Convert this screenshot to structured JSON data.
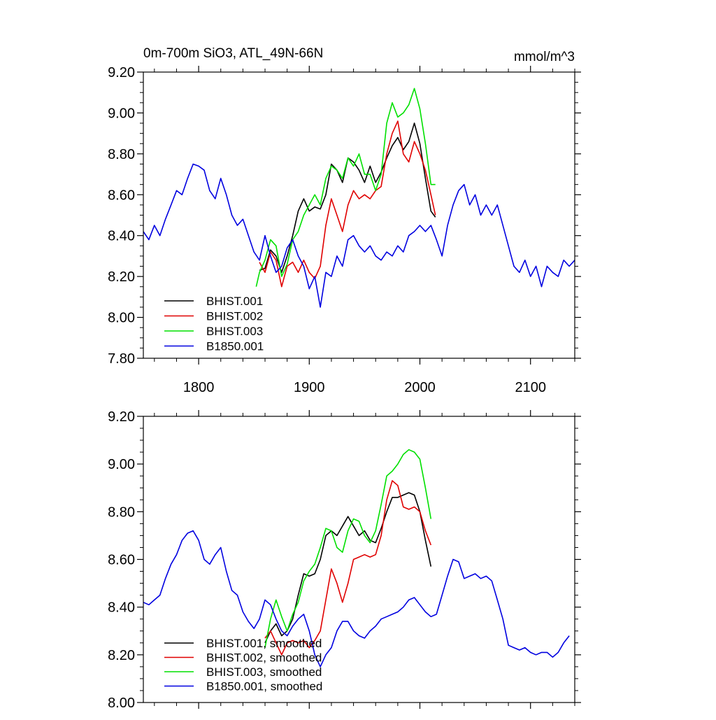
{
  "colors": {
    "BHIST.001": "#000000",
    "BHIST.002": "#e00000",
    "BHIST.003": "#00e000",
    "B1850.001": "#0000e0"
  },
  "chart_data": [
    {
      "type": "line",
      "title": "0m-700m SiO3, ATL_49N-66N",
      "units": "mmol/m^3",
      "xlim": [
        1750,
        2140
      ],
      "ylim": [
        7.8,
        9.2
      ],
      "xticks": [
        1800,
        1900,
        2000,
        2100
      ],
      "yticks": [
        7.8,
        8.0,
        8.2,
        8.4,
        8.6,
        8.8,
        9.0,
        9.2
      ],
      "ytick_labels": [
        "7.80",
        "8.00",
        "8.20",
        "8.40",
        "8.60",
        "8.80",
        "9.00",
        "9.20"
      ],
      "show_x_labels": true,
      "legend": "bottom-left",
      "series": [
        {
          "name": "BHIST.001",
          "x": [
            1855,
            1860,
            1865,
            1870,
            1875,
            1880,
            1885,
            1890,
            1895,
            1900,
            1905,
            1910,
            1915,
            1920,
            1925,
            1930,
            1935,
            1940,
            1945,
            1950,
            1955,
            1960,
            1965,
            1970,
            1975,
            1980,
            1985,
            1990,
            1995,
            2000,
            2005,
            2010,
            2014
          ],
          "y": [
            8.23,
            8.24,
            8.33,
            8.3,
            8.22,
            8.3,
            8.4,
            8.52,
            8.58,
            8.52,
            8.54,
            8.53,
            8.6,
            8.75,
            8.72,
            8.66,
            8.78,
            8.76,
            8.72,
            8.66,
            8.74,
            8.66,
            8.71,
            8.78,
            8.84,
            8.88,
            8.82,
            8.86,
            8.95,
            8.85,
            8.68,
            8.52,
            8.49
          ]
        },
        {
          "name": "BHIST.002",
          "x": [
            1855,
            1860,
            1865,
            1870,
            1875,
            1880,
            1885,
            1890,
            1895,
            1900,
            1905,
            1910,
            1915,
            1920,
            1925,
            1930,
            1935,
            1940,
            1945,
            1950,
            1955,
            1960,
            1965,
            1970,
            1975,
            1980,
            1985,
            1990,
            1995,
            2000,
            2005,
            2010,
            2014
          ],
          "y": [
            8.27,
            8.22,
            8.32,
            8.28,
            8.15,
            8.25,
            8.27,
            8.22,
            8.28,
            8.22,
            8.19,
            8.25,
            8.45,
            8.58,
            8.5,
            8.42,
            8.55,
            8.62,
            8.58,
            8.6,
            8.58,
            8.62,
            8.64,
            8.8,
            8.9,
            8.96,
            8.8,
            8.76,
            8.86,
            8.8,
            8.72,
            8.6,
            8.5
          ]
        },
        {
          "name": "BHIST.003",
          "x": [
            1852,
            1855,
            1860,
            1865,
            1870,
            1875,
            1880,
            1885,
            1890,
            1895,
            1900,
            1905,
            1910,
            1915,
            1920,
            1925,
            1930,
            1935,
            1940,
            1945,
            1950,
            1955,
            1960,
            1965,
            1970,
            1975,
            1980,
            1985,
            1990,
            1995,
            2000,
            2005,
            2010,
            2014
          ],
          "y": [
            8.15,
            8.22,
            8.28,
            8.38,
            8.35,
            8.2,
            8.26,
            8.38,
            8.42,
            8.5,
            8.55,
            8.6,
            8.55,
            8.68,
            8.74,
            8.72,
            8.68,
            8.78,
            8.74,
            8.8,
            8.7,
            8.7,
            8.62,
            8.7,
            8.95,
            9.05,
            8.98,
            9.0,
            9.04,
            9.12,
            9.02,
            8.85,
            8.65,
            8.65
          ]
        },
        {
          "name": "B1850.001",
          "x": [
            1750,
            1755,
            1760,
            1765,
            1770,
            1775,
            1780,
            1785,
            1790,
            1795,
            1800,
            1805,
            1810,
            1815,
            1820,
            1825,
            1830,
            1835,
            1840,
            1845,
            1850,
            1855,
            1860,
            1865,
            1870,
            1875,
            1880,
            1885,
            1890,
            1895,
            1900,
            1905,
            1910,
            1915,
            1920,
            1925,
            1930,
            1935,
            1940,
            1945,
            1950,
            1955,
            1960,
            1965,
            1970,
            1975,
            1980,
            1985,
            1990,
            1995,
            2000,
            2005,
            2010,
            2015,
            2020,
            2025,
            2030,
            2035,
            2040,
            2045,
            2050,
            2055,
            2060,
            2065,
            2070,
            2075,
            2080,
            2085,
            2090,
            2095,
            2100,
            2105,
            2110,
            2115,
            2120,
            2125,
            2130,
            2135,
            2140
          ],
          "y": [
            8.42,
            8.38,
            8.45,
            8.4,
            8.48,
            8.55,
            8.62,
            8.6,
            8.68,
            8.75,
            8.74,
            8.72,
            8.62,
            8.58,
            8.68,
            8.6,
            8.5,
            8.45,
            8.48,
            8.4,
            8.32,
            8.28,
            8.4,
            8.3,
            8.22,
            8.25,
            8.34,
            8.38,
            8.3,
            8.25,
            8.14,
            8.2,
            8.05,
            8.22,
            8.2,
            8.3,
            8.25,
            8.38,
            8.4,
            8.35,
            8.32,
            8.35,
            8.3,
            8.28,
            8.32,
            8.3,
            8.35,
            8.32,
            8.4,
            8.42,
            8.45,
            8.42,
            8.45,
            8.38,
            8.3,
            8.45,
            8.55,
            8.62,
            8.65,
            8.55,
            8.6,
            8.5,
            8.55,
            8.5,
            8.55,
            8.45,
            8.35,
            8.25,
            8.22,
            8.28,
            8.2,
            8.25,
            8.15,
            8.25,
            8.22,
            8.2,
            8.28,
            8.25,
            8.28
          ]
        }
      ]
    },
    {
      "type": "line",
      "xlim": [
        1750,
        2140
      ],
      "ylim": [
        8.0,
        9.2
      ],
      "xticks": [
        1800,
        1900,
        2000,
        2100
      ],
      "yticks": [
        8.0,
        8.2,
        8.4,
        8.6,
        8.8,
        9.0,
        9.2
      ],
      "ytick_labels": [
        "8.00",
        "8.20",
        "8.40",
        "8.60",
        "8.80",
        "9.00",
        "9.20"
      ],
      "show_x_labels": false,
      "legend": "bottom-left",
      "series": [
        {
          "name": "BHIST.001, smoothed",
          "x": [
            1860,
            1865,
            1870,
            1875,
            1880,
            1885,
            1890,
            1895,
            1900,
            1905,
            1910,
            1915,
            1920,
            1925,
            1930,
            1935,
            1940,
            1945,
            1950,
            1955,
            1960,
            1965,
            1970,
            1975,
            1980,
            1985,
            1990,
            1995,
            2000,
            2005,
            2010
          ],
          "y": [
            8.25,
            8.3,
            8.33,
            8.28,
            8.3,
            8.35,
            8.45,
            8.54,
            8.53,
            8.54,
            8.6,
            8.7,
            8.72,
            8.7,
            8.74,
            8.78,
            8.74,
            8.7,
            8.72,
            8.68,
            8.67,
            8.73,
            8.8,
            8.86,
            8.86,
            8.87,
            8.88,
            8.87,
            8.8,
            8.68,
            8.57
          ]
        },
        {
          "name": "BHIST.002, smoothed",
          "x": [
            1860,
            1865,
            1870,
            1875,
            1880,
            1885,
            1890,
            1895,
            1900,
            1905,
            1910,
            1915,
            1920,
            1925,
            1930,
            1935,
            1940,
            1945,
            1950,
            1955,
            1960,
            1965,
            1970,
            1975,
            1980,
            1985,
            1990,
            1995,
            2000,
            2005,
            2010
          ],
          "y": [
            8.27,
            8.3,
            8.25,
            8.2,
            8.25,
            8.26,
            8.25,
            8.26,
            8.23,
            8.26,
            8.3,
            8.43,
            8.56,
            8.5,
            8.42,
            8.5,
            8.6,
            8.61,
            8.62,
            8.61,
            8.62,
            8.7,
            8.85,
            8.93,
            8.91,
            8.82,
            8.81,
            8.82,
            8.8,
            8.72,
            8.66
          ]
        },
        {
          "name": "BHIST.003, smoothed",
          "x": [
            1860,
            1865,
            1870,
            1875,
            1880,
            1885,
            1890,
            1895,
            1900,
            1905,
            1910,
            1915,
            1920,
            1925,
            1930,
            1935,
            1940,
            1945,
            1950,
            1955,
            1960,
            1965,
            1970,
            1975,
            1980,
            1985,
            1990,
            1995,
            2000,
            2005,
            2010
          ],
          "y": [
            8.23,
            8.35,
            8.43,
            8.36,
            8.3,
            8.37,
            8.42,
            8.51,
            8.55,
            8.58,
            8.65,
            8.73,
            8.72,
            8.65,
            8.63,
            8.72,
            8.77,
            8.76,
            8.7,
            8.67,
            8.72,
            8.83,
            8.95,
            8.97,
            9.0,
            9.04,
            9.06,
            9.05,
            9.02,
            8.9,
            8.77
          ]
        },
        {
          "name": "B1850.001, smoothed",
          "x": [
            1750,
            1755,
            1760,
            1765,
            1770,
            1775,
            1780,
            1785,
            1790,
            1795,
            1800,
            1805,
            1810,
            1815,
            1820,
            1825,
            1830,
            1835,
            1840,
            1845,
            1850,
            1855,
            1860,
            1865,
            1870,
            1875,
            1880,
            1885,
            1890,
            1895,
            1900,
            1905,
            1910,
            1915,
            1920,
            1925,
            1930,
            1935,
            1940,
            1945,
            1950,
            1955,
            1960,
            1965,
            1970,
            1975,
            1980,
            1985,
            1990,
            1995,
            2000,
            2005,
            2010,
            2015,
            2020,
            2025,
            2030,
            2035,
            2040,
            2045,
            2050,
            2055,
            2060,
            2065,
            2070,
            2075,
            2080,
            2085,
            2090,
            2095,
            2100,
            2105,
            2110,
            2115,
            2120,
            2125,
            2130,
            2135
          ],
          "y": [
            8.42,
            8.41,
            8.43,
            8.45,
            8.52,
            8.58,
            8.62,
            8.68,
            8.71,
            8.72,
            8.68,
            8.6,
            8.58,
            8.62,
            8.65,
            8.55,
            8.47,
            8.45,
            8.38,
            8.34,
            8.31,
            8.35,
            8.43,
            8.41,
            8.35,
            8.3,
            8.28,
            8.32,
            8.35,
            8.37,
            8.3,
            8.2,
            8.15,
            8.2,
            8.23,
            8.3,
            8.34,
            8.34,
            8.3,
            8.28,
            8.27,
            8.3,
            8.32,
            8.35,
            8.36,
            8.37,
            8.38,
            8.4,
            8.43,
            8.44,
            8.41,
            8.38,
            8.36,
            8.37,
            8.45,
            8.53,
            8.6,
            8.59,
            8.52,
            8.53,
            8.54,
            8.52,
            8.53,
            8.51,
            8.43,
            8.35,
            8.24,
            8.23,
            8.22,
            8.23,
            8.21,
            8.2,
            8.21,
            8.21,
            8.19,
            8.21,
            8.25,
            8.28
          ]
        }
      ]
    }
  ]
}
